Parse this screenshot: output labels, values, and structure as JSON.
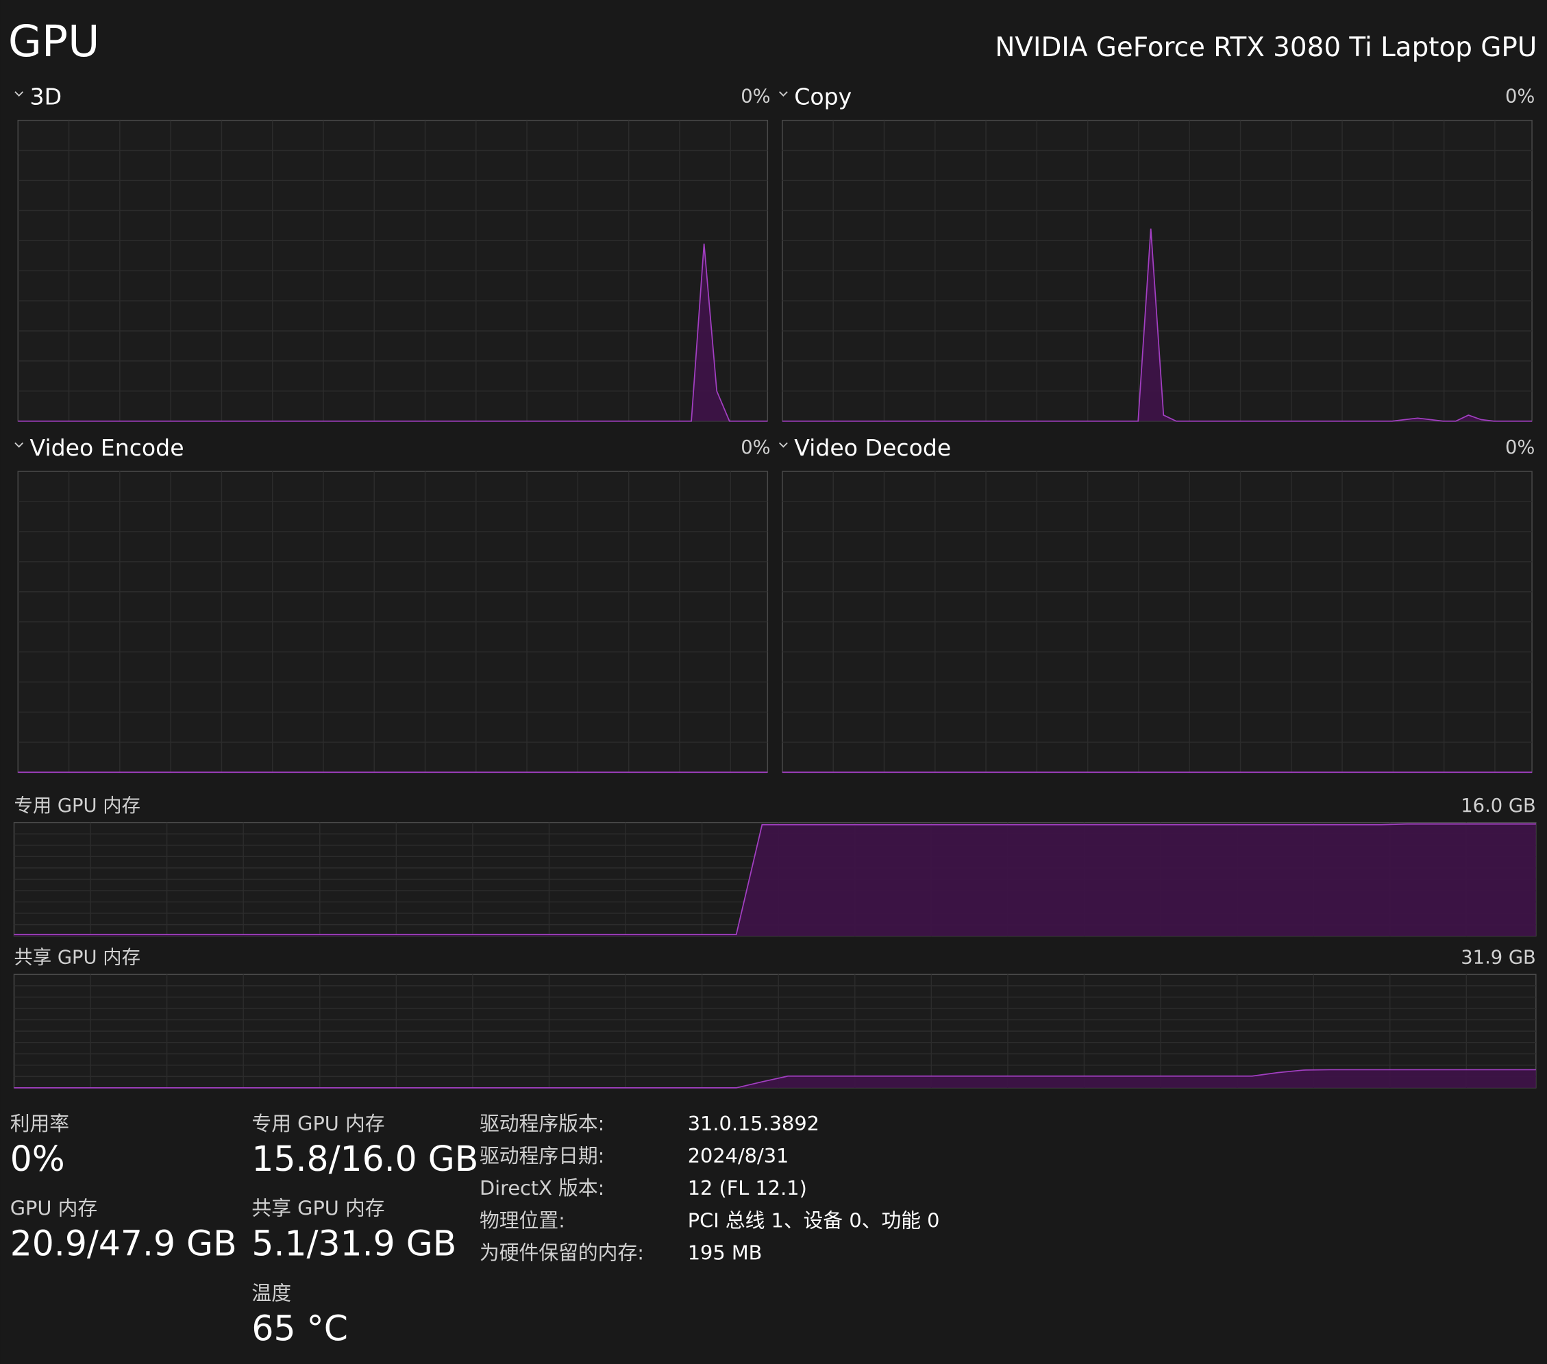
{
  "header": {
    "title": "GPU",
    "device": "NVIDIA GeForce RTX 3080 Ti Laptop GPU"
  },
  "engines": [
    {
      "name": "3D",
      "current": "0%",
      "ylim": [
        0,
        100
      ],
      "values": [
        0,
        0,
        0,
        0,
        0,
        0,
        0,
        0,
        0,
        0,
        0,
        0,
        0,
        0,
        0,
        0,
        0,
        0,
        0,
        0,
        0,
        0,
        0,
        0,
        0,
        0,
        0,
        0,
        0,
        0,
        0,
        0,
        0,
        0,
        0,
        0,
        0,
        0,
        0,
        0,
        0,
        0,
        0,
        0,
        0,
        0,
        0,
        0,
        0,
        0,
        0,
        0,
        0,
        0,
        59,
        10,
        0,
        0,
        0,
        0
      ]
    },
    {
      "name": "Copy",
      "current": "0%",
      "ylim": [
        0,
        100
      ],
      "values": [
        0,
        0,
        0,
        0,
        0,
        0,
        0,
        0,
        0,
        0,
        0,
        0,
        0,
        0,
        0,
        0,
        0,
        0,
        0,
        0,
        0,
        0,
        0,
        0,
        0,
        0,
        0,
        0,
        0,
        64,
        2,
        0,
        0,
        0,
        0,
        0,
        0,
        0,
        0,
        0,
        0,
        0,
        0,
        0,
        0,
        0,
        0,
        0,
        0,
        0.5,
        1,
        0.5,
        0,
        0,
        2,
        0.5,
        0,
        0,
        0,
        0
      ]
    },
    {
      "name": "Video Encode",
      "current": "0%",
      "ylim": [
        0,
        100
      ],
      "values": [
        0,
        0,
        0,
        0,
        0,
        0,
        0,
        0,
        0,
        0,
        0,
        0,
        0,
        0,
        0,
        0,
        0,
        0,
        0,
        0,
        0,
        0,
        0,
        0,
        0,
        0,
        0,
        0,
        0,
        0,
        0,
        0,
        0,
        0,
        0,
        0,
        0,
        0,
        0,
        0,
        0,
        0,
        0,
        0,
        0,
        0,
        0,
        0,
        0,
        0,
        0,
        0,
        0,
        0,
        0,
        0,
        0,
        0,
        0,
        0
      ]
    },
    {
      "name": "Video Decode",
      "current": "0%",
      "ylim": [
        0,
        100
      ],
      "values": [
        0,
        0,
        0,
        0,
        0,
        0,
        0,
        0,
        0,
        0,
        0,
        0,
        0,
        0,
        0,
        0,
        0,
        0,
        0,
        0,
        0,
        0,
        0,
        0,
        0,
        0,
        0,
        0,
        0,
        0,
        0,
        0,
        0,
        0,
        0,
        0,
        0,
        0,
        0,
        0,
        0,
        0,
        0,
        0,
        0,
        0,
        0,
        0,
        0,
        0,
        0,
        0,
        0,
        0,
        0,
        0,
        0,
        0,
        0,
        0
      ]
    }
  ],
  "memory_graphs": [
    {
      "name": "专用 GPU 内存",
      "max": {
        "value": 16.0,
        "label": "16.0 GB"
      },
      "values": [
        0.2,
        0.2,
        0.2,
        0.2,
        0.2,
        0.2,
        0.2,
        0.2,
        0.2,
        0.2,
        0.2,
        0.2,
        0.2,
        0.2,
        0.2,
        0.2,
        0.2,
        0.2,
        0.2,
        0.2,
        0.2,
        0.2,
        0.2,
        0.2,
        0.2,
        0.2,
        0.2,
        0.2,
        0.2,
        15.7,
        15.7,
        15.7,
        15.7,
        15.7,
        15.7,
        15.7,
        15.7,
        15.7,
        15.7,
        15.7,
        15.7,
        15.7,
        15.7,
        15.7,
        15.7,
        15.7,
        15.7,
        15.7,
        15.7,
        15.7,
        15.7,
        15.7,
        15.7,
        15.7,
        15.8,
        15.8,
        15.8,
        15.8,
        15.8,
        15.8
      ]
    },
    {
      "name": "共享 GPU 内存",
      "max": {
        "value": 31.9,
        "label": "31.9 GB"
      },
      "values": [
        0,
        0,
        0,
        0,
        0,
        0,
        0,
        0,
        0,
        0,
        0,
        0,
        0,
        0,
        0,
        0,
        0,
        0,
        0,
        0,
        0,
        0,
        0,
        0,
        0,
        0,
        0,
        0,
        0,
        1.7,
        3.3,
        3.3,
        3.3,
        3.3,
        3.3,
        3.3,
        3.3,
        3.3,
        3.3,
        3.3,
        3.3,
        3.3,
        3.3,
        3.3,
        3.3,
        3.3,
        3.3,
        3.3,
        3.3,
        4.3,
        5.0,
        5.1,
        5.1,
        5.1,
        5.1,
        5.1,
        5.1,
        5.1,
        5.1,
        5.1
      ]
    }
  ],
  "stats": [
    {
      "label": "利用率",
      "value": "0%"
    },
    {
      "label": "GPU 内存",
      "value": "20.9/47.9 GB"
    },
    {
      "label": "专用 GPU 内存",
      "value": "15.8/16.0 GB"
    },
    {
      "label": "共享 GPU 内存",
      "value": "5.1/31.9 GB"
    },
    {
      "label": "温度",
      "value": "65 °C"
    }
  ],
  "details": [
    {
      "label": "驱动程序版本:",
      "value": "31.0.15.3892"
    },
    {
      "label": "驱动程序日期:",
      "value": "2024/8/31"
    },
    {
      "label": "DirectX 版本:",
      "value": "12 (FL 12.1)"
    },
    {
      "label": "物理位置:",
      "value": "PCI 总线 1、设备 0、功能 0"
    },
    {
      "label": "为硬件保留的内存:",
      "value": "195 MB"
    }
  ]
}
